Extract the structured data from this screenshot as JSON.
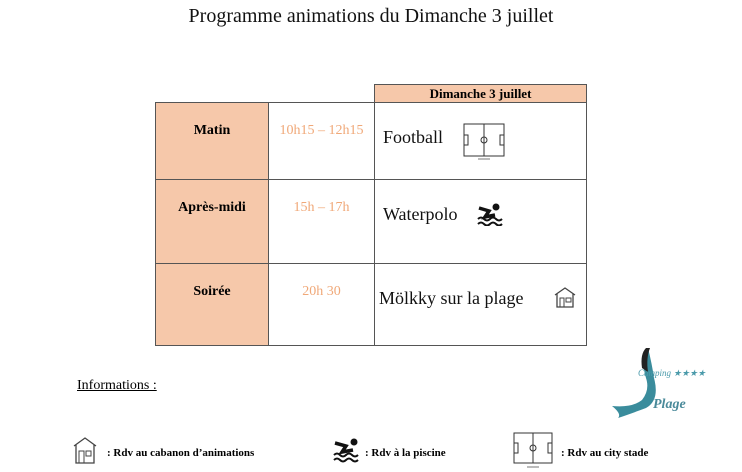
{
  "title": "Programme animations du Dimanche 3 juillet",
  "table": {
    "day_header": "Dimanche 3 juillet",
    "rows": [
      {
        "period": "Matin",
        "time": "10h15 – 12h15",
        "activity": "Football",
        "icon": "football-field-icon"
      },
      {
        "period": "Après-midi",
        "time": "15h – 17h",
        "activity": "Waterpolo",
        "icon": "swimming-icon"
      },
      {
        "period": "Soirée",
        "time": "20h 30",
        "activity": "Mölkky sur la plage",
        "icon": "cabin-icon"
      }
    ]
  },
  "info": {
    "heading": "Informations :",
    "legend": [
      {
        "icon": "cabin-icon",
        "text": ": Rdv au cabanon d’animations"
      },
      {
        "icon": "swimming-icon",
        "text": ": Rdv à la piscine"
      },
      {
        "icon": "football-field-icon",
        "text": ": Rdv au city stade"
      }
    ]
  },
  "logo": {
    "text": "Camping ★★★★ International Plage"
  },
  "colors": {
    "peach": "#f6c8aa",
    "time": "#f0a878"
  }
}
